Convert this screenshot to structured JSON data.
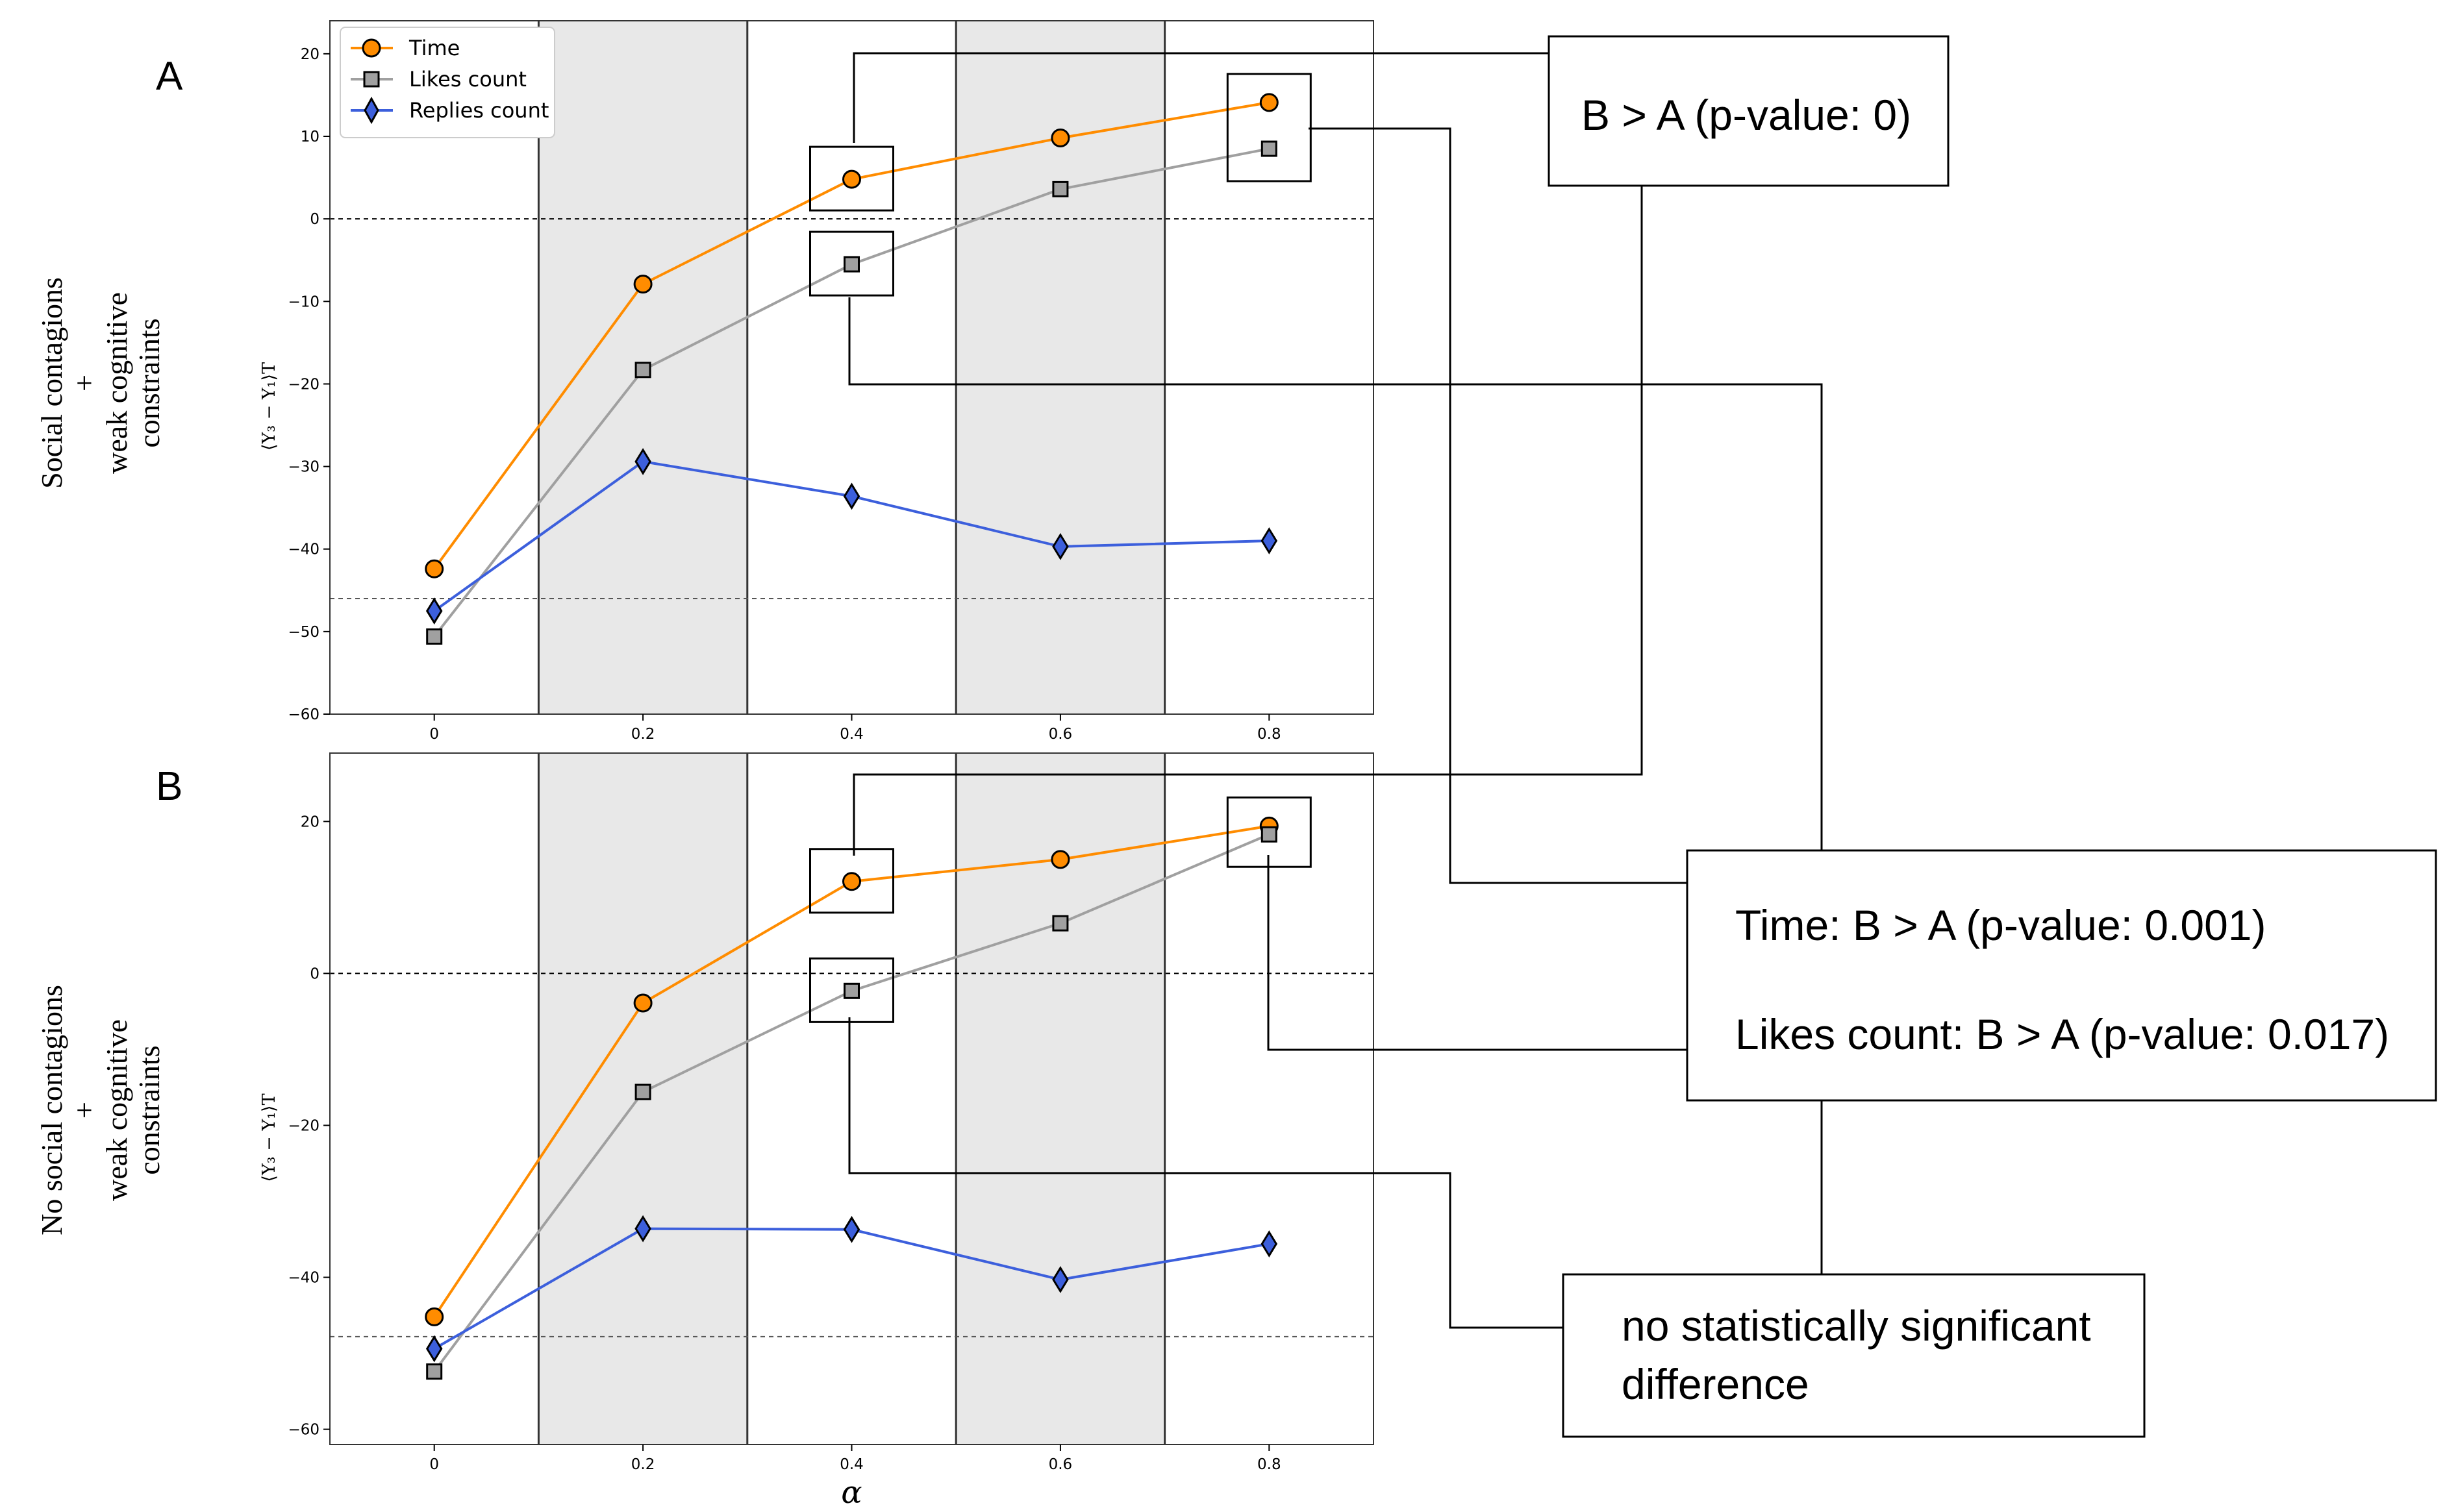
{
  "row_labels": {
    "top": [
      "Social contagions",
      "+",
      "weak cognitive",
      "constraints"
    ],
    "bottom": [
      "No social contagions",
      "+",
      "weak cognitive",
      "constraints"
    ]
  },
  "annotations": {
    "p1": "B > A (p-value: 0)",
    "p2_line1": "Time: B > A (p-value: 0.001)",
    "p2_line2": "Likes count: B > A (p-value: 0.017)",
    "p3_line1": "no statistically significant",
    "p3_line2": "difference"
  },
  "colors": {
    "time": "#ff8c00",
    "likes": "#a0a0a0",
    "replies": "#3c5fdc",
    "shade": "#e8e8e8"
  },
  "chart_data": [
    {
      "type": "line",
      "panel": "A",
      "legend": [
        "Time",
        "Likes count",
        "Replies count"
      ],
      "legend_loc": "top-left",
      "x": [
        0,
        0.2,
        0.4,
        0.6,
        0.8
      ],
      "x_ticks": [
        "0",
        "0.2",
        "0.4",
        "0.6",
        "0.8"
      ],
      "xlim": [
        -0.1,
        0.9
      ],
      "y_ticks": [
        "20",
        "10",
        "0",
        "−10",
        "−20",
        "−30",
        "−40",
        "−50",
        "−60"
      ],
      "y_tick_values": [
        20,
        10,
        0,
        -10,
        -20,
        -30,
        -40,
        -50,
        -60
      ],
      "ylim": [
        -60,
        24
      ],
      "ylabel": "⟨Y₃ − Y₁⟩T",
      "xlabel": "",
      "hlines": [
        0,
        -46
      ],
      "shaded_x": [
        [
          0.1,
          0.3
        ],
        [
          0.5,
          0.7
        ]
      ],
      "vlines": [
        0.1,
        0.3,
        0.5,
        0.7
      ],
      "series": [
        {
          "name": "Time",
          "marker": "circle",
          "values": [
            -42.4,
            -7.9,
            4.8,
            9.8,
            14.1
          ]
        },
        {
          "name": "Likes count",
          "marker": "square",
          "values": [
            -50.6,
            -18.3,
            -5.5,
            3.6,
            8.5
          ]
        },
        {
          "name": "Replies count",
          "marker": "diamond",
          "values": [
            -47.5,
            -29.4,
            -33.6,
            -39.7,
            -39.0
          ]
        }
      ],
      "highlighted": [
        {
          "series": "Time",
          "x": 0.4
        },
        {
          "series": "Likes count",
          "x": 0.4
        },
        {
          "series": "Time",
          "x": 0.8
        },
        {
          "series": "Likes count",
          "x": 0.8
        }
      ]
    },
    {
      "type": "line",
      "panel": "B",
      "x": [
        0,
        0.2,
        0.4,
        0.6,
        0.8
      ],
      "x_ticks": [
        "0",
        "0.2",
        "0.4",
        "0.6",
        "0.8"
      ],
      "xlim": [
        -0.1,
        0.9
      ],
      "y_ticks": [
        "20",
        "0",
        "−20",
        "−40",
        "−60"
      ],
      "y_tick_values": [
        20,
        0,
        -20,
        -40,
        -60
      ],
      "ylim": [
        -62,
        29
      ],
      "ylabel": "⟨Y₃ − Y₁⟩T",
      "xlabel": "α",
      "hlines": [
        0,
        -47.8
      ],
      "shaded_x": [
        [
          0.1,
          0.3
        ],
        [
          0.5,
          0.7
        ]
      ],
      "vlines": [
        0.1,
        0.3,
        0.5,
        0.7
      ],
      "series": [
        {
          "name": "Time",
          "marker": "circle",
          "values": [
            -45.2,
            -3.9,
            12.1,
            15.0,
            19.4
          ]
        },
        {
          "name": "Likes count",
          "marker": "square",
          "values": [
            -52.4,
            -15.6,
            -2.3,
            6.6,
            18.3
          ]
        },
        {
          "name": "Replies count",
          "marker": "diamond",
          "values": [
            -49.4,
            -33.6,
            -33.7,
            -40.3,
            -35.6
          ]
        }
      ],
      "highlighted": [
        {
          "series": "Time",
          "x": 0.4
        },
        {
          "series": "Likes count",
          "x": 0.4
        },
        {
          "series": "Time",
          "x": 0.8
        },
        {
          "series": "Likes count",
          "x": 0.8
        }
      ]
    }
  ]
}
